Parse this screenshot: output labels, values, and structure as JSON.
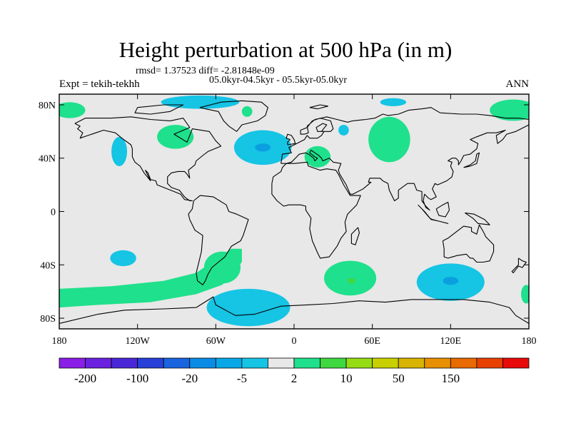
{
  "title": "Height perturbation at 500 hPa (in m)",
  "stats_line": "rmsd= 1.37523 diff= -2.81848e-09",
  "period_line": "05.0kyr-04.5kyr - 05.5kyr-05.0kyr",
  "experiment": "Expt = tekih-tekhh",
  "season": "ANN",
  "map": {
    "background_color": "#e8e8e8",
    "lon_range": [
      -180,
      180
    ],
    "lat_range": [
      -90,
      90
    ],
    "x_ticks": [
      {
        "lon": -180,
        "label": "180"
      },
      {
        "lon": -120,
        "label": "120W"
      },
      {
        "lon": -60,
        "label": "60W"
      },
      {
        "lon": 0,
        "label": "0"
      },
      {
        "lon": 60,
        "label": "60E"
      },
      {
        "lon": 120,
        "label": "120E"
      },
      {
        "lon": 180,
        "label": "180"
      }
    ],
    "y_ticks": [
      {
        "lat": 80,
        "label": "80N"
      },
      {
        "lat": 40,
        "label": "40N"
      },
      {
        "lat": 0,
        "label": "0"
      },
      {
        "lat": -40,
        "label": "40S"
      },
      {
        "lat": -80,
        "label": "80S"
      }
    ],
    "anomalies": [
      {
        "name": "north-pacific-positive",
        "lon": -172,
        "lat": 76,
        "rlon": 12,
        "rlat": 6,
        "color": "#1fe08c"
      },
      {
        "name": "north-pacific-east-positive",
        "lon": 168,
        "lat": 76,
        "rlon": 18,
        "rlat": 8,
        "color": "#1fe08c"
      },
      {
        "name": "greenland-negative",
        "lon": -72,
        "lat": 82,
        "rlon": 30,
        "rlat": 5,
        "color": "#16c4e4"
      },
      {
        "name": "west-coast-negative",
        "lon": -134,
        "lat": 45,
        "rlon": 6,
        "rlat": 11,
        "color": "#16c4e4"
      },
      {
        "name": "north-america-positive",
        "lon": -91,
        "lat": 56,
        "rlon": 14,
        "rlat": 9,
        "color": "#1fe08c"
      },
      {
        "name": "north-atlantic-negative",
        "lon": -24,
        "lat": 48,
        "rlon": 22,
        "rlat": 13,
        "color": "#16c4e4"
      },
      {
        "name": "north-atlantic-core",
        "lon": -24,
        "lat": 48,
        "rlon": 6,
        "rlat": 3,
        "color": "#0aa0e0"
      },
      {
        "name": "arctic-atlantic-positive",
        "lon": -36,
        "lat": 75,
        "rlon": 4,
        "rlat": 4,
        "color": "#1fe08c"
      },
      {
        "name": "europe-positive",
        "lon": 18,
        "lat": 41,
        "rlon": 10,
        "rlat": 8,
        "color": "#1fe08c"
      },
      {
        "name": "scandinavia-negative",
        "lon": 38,
        "lat": 61,
        "rlon": 4,
        "rlat": 4,
        "color": "#16c4e4"
      },
      {
        "name": "siberia-positive",
        "lon": 73,
        "lat": 54,
        "rlon": 16,
        "rlat": 17,
        "color": "#1fe08c"
      },
      {
        "name": "arctic-russia-negative",
        "lon": 76,
        "lat": 82,
        "rlon": 10,
        "rlat": 3,
        "color": "#16c4e4"
      },
      {
        "name": "south-pacific-negative",
        "lon": -131,
        "lat": -35,
        "rlon": 10,
        "rlat": 6,
        "color": "#16c4e4"
      },
      {
        "name": "drake-passage-positive",
        "lon": -55,
        "lat": -42,
        "rlon": 14,
        "rlat": 12,
        "color": "#1fe08c"
      },
      {
        "name": "southern-atlantic-negative",
        "lon": -35,
        "lat": -72,
        "rlon": 32,
        "rlat": 14,
        "color": "#16c4e4"
      },
      {
        "name": "south-indian-positive",
        "lon": 43,
        "lat": -50,
        "rlon": 20,
        "rlat": 13,
        "color": "#1fe08c"
      },
      {
        "name": "south-indian-core",
        "lon": 44,
        "lat": -52,
        "rlon": 3,
        "rlat": 2,
        "color": "#40d840"
      },
      {
        "name": "south-australia-negative",
        "lon": 120,
        "lat": -53,
        "rlon": 26,
        "rlat": 14,
        "color": "#16c4e4"
      },
      {
        "name": "south-australia-core",
        "lon": 120,
        "lat": -52,
        "rlon": 6,
        "rlat": 3,
        "color": "#0aa0e0"
      },
      {
        "name": "date-line-south-positive",
        "lon": 178,
        "lat": -62,
        "rlon": 4,
        "rlat": 7,
        "color": "#1fe08c"
      }
    ],
    "bands": [
      {
        "name": "southern-ocean-positive-band",
        "points": [
          [
            -180,
            -58
          ],
          [
            -140,
            -56
          ],
          [
            -100,
            -52
          ],
          [
            -75,
            -46
          ],
          [
            -60,
            -36
          ],
          [
            -48,
            -28
          ],
          [
            -40,
            -28
          ],
          [
            -40,
            -38
          ],
          [
            -55,
            -55
          ],
          [
            -75,
            -62
          ],
          [
            -110,
            -68
          ],
          [
            -150,
            -70
          ],
          [
            -180,
            -72
          ]
        ],
        "color": "#1fe08c"
      }
    ]
  },
  "colorbar": {
    "colors": [
      "#8a1ee6",
      "#6a22e0",
      "#4a28d8",
      "#2840d8",
      "#1a64e0",
      "#0a8ce6",
      "#08a8e6",
      "#16c4e4",
      "#e8e8e8",
      "#1fe08c",
      "#40d840",
      "#96dc14",
      "#c8d000",
      "#d8b400",
      "#e89000",
      "#e86a00",
      "#e84000",
      "#e80a0a"
    ],
    "labels": [
      {
        "boundary": 1,
        "text": "-200"
      },
      {
        "boundary": 3,
        "text": "-100"
      },
      {
        "boundary": 5,
        "text": "-20"
      },
      {
        "boundary": 7,
        "text": "-5"
      },
      {
        "boundary": 9,
        "text": "2"
      },
      {
        "boundary": 11,
        "text": "10"
      },
      {
        "boundary": 13,
        "text": "50"
      },
      {
        "boundary": 15,
        "text": "150"
      }
    ]
  }
}
